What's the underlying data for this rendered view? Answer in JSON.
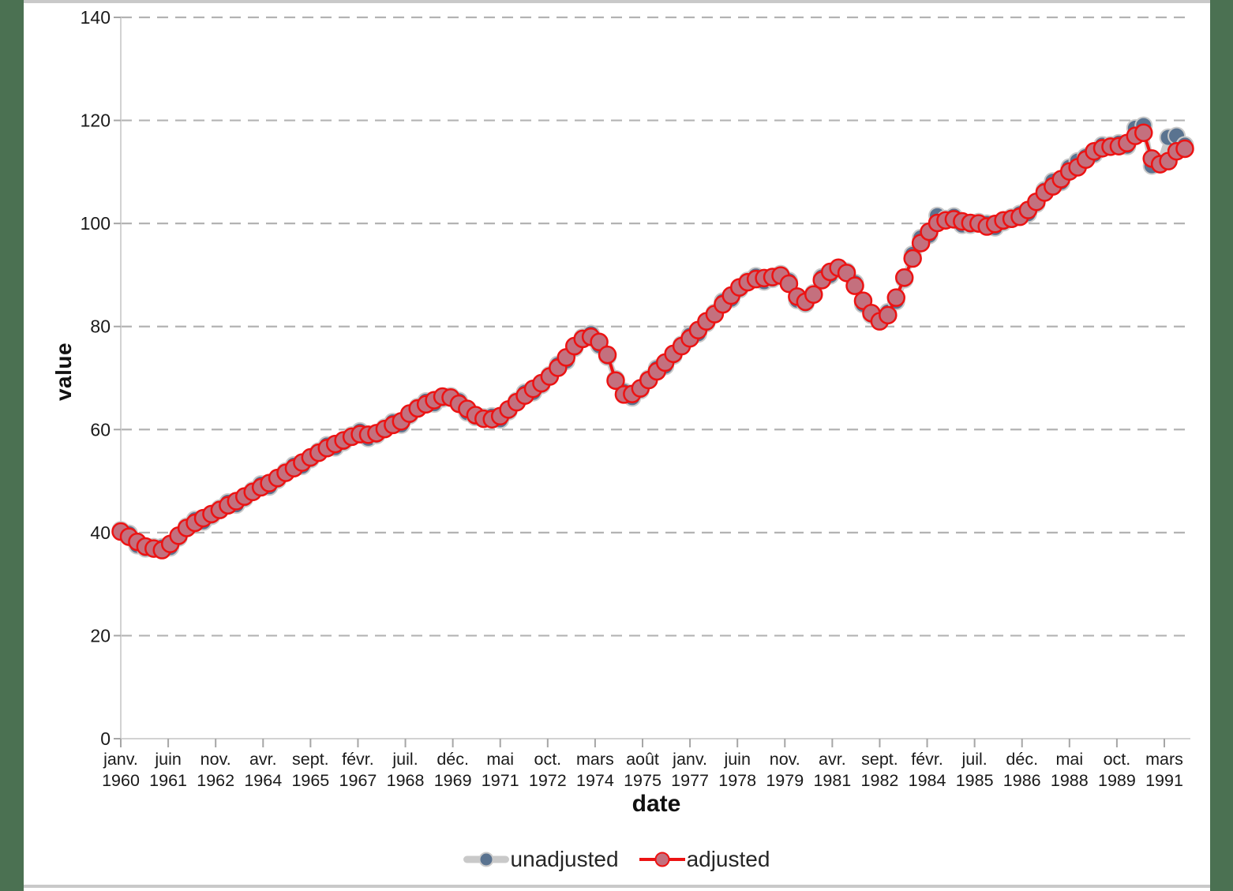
{
  "frame": {
    "side_border_color": "#4b7152",
    "frame_line_color": "#c9c9c9",
    "background": "#ffffff"
  },
  "axes": {
    "x_label": "date",
    "y_label": "value",
    "tick_label_color": "#1a1a1a",
    "axis_line_color": "#d2d2d2",
    "tick_mark_color": "#a6a6a6",
    "gridline_color": "#b3b3b3"
  },
  "legend": {
    "position": "bottom-center",
    "unadjusted_label": "unadjusted",
    "adjusted_label": "adjusted"
  },
  "chart_data": {
    "type": "line",
    "title": "",
    "xlabel": "date",
    "ylabel": "value",
    "ylim": [
      0,
      140
    ],
    "y_ticks": [
      0,
      20,
      40,
      60,
      80,
      100,
      120,
      140
    ],
    "grid": "horizontal dashed gridlines at every 20 units",
    "legend_position": "bottom",
    "x_description": "quarterly observations from 1960 Q1 to 1992 Q2 (130 points); axis ticks every 17 months with French month abbreviations",
    "x_tick_labels": [
      {
        "month": "janv.",
        "year": "1960"
      },
      {
        "month": "juin",
        "year": "1961"
      },
      {
        "month": "nov.",
        "year": "1962"
      },
      {
        "month": "avr.",
        "year": "1964"
      },
      {
        "month": "sept.",
        "year": "1965"
      },
      {
        "month": "févr.",
        "year": "1967"
      },
      {
        "month": "juil.",
        "year": "1968"
      },
      {
        "month": "déc.",
        "year": "1969"
      },
      {
        "month": "mai",
        "year": "1971"
      },
      {
        "month": "oct.",
        "year": "1972"
      },
      {
        "month": "mars",
        "year": "1974"
      },
      {
        "month": "août",
        "year": "1975"
      },
      {
        "month": "janv.",
        "year": "1977"
      },
      {
        "month": "juin",
        "year": "1978"
      },
      {
        "month": "nov.",
        "year": "1979"
      },
      {
        "month": "avr.",
        "year": "1981"
      },
      {
        "month": "sept.",
        "year": "1982"
      },
      {
        "month": "févr.",
        "year": "1984"
      },
      {
        "month": "juil.",
        "year": "1985"
      },
      {
        "month": "déc.",
        "year": "1986"
      },
      {
        "month": "mai",
        "year": "1988"
      },
      {
        "month": "oct.",
        "year": "1989"
      },
      {
        "month": "mars",
        "year": "1991"
      }
    ],
    "series": [
      {
        "name": "unadjusted",
        "marker_fill": "#5a7390",
        "marker_stroke": "#c9c9c9",
        "line_color": "#c9c9c9",
        "values": [
          40.5,
          39.8,
          37.5,
          36.9,
          37.2,
          37.2,
          37.1,
          39.0,
          41.2,
          42.5,
          42.1,
          43.2,
          44.7,
          45.9,
          45.4,
          46.6,
          48.2,
          49.4,
          48.9,
          50.2,
          51.9,
          53.1,
          52.9,
          54.2,
          55.8,
          57.0,
          56.5,
          57.5,
          58.9,
          59.7,
          58.3,
          58.9,
          60.4,
          61.5,
          60.9,
          62.7,
          64.4,
          65.5,
          65.0,
          66.0,
          66.5,
          65.6,
          63.3,
          62.4,
          62.4,
          62.6,
          61.9,
          63.5,
          65.6,
          67.2,
          67.2,
          68.6,
          70.6,
          72.6,
          73.3,
          75.8,
          77.9,
          78.6,
          76.3,
          74.1,
          69.8,
          67.4,
          66.2,
          67.6,
          69.9,
          71.9,
          72.3,
          74.3,
          76.5,
          78.3,
          78.6,
          80.6,
          82.7,
          84.9,
          85.3,
          87.2,
          88.9,
          89.8,
          88.7,
          89.2,
          90.2,
          88.9,
          85.1,
          84.4,
          86.5,
          89.6,
          89.9,
          91.0,
          90.7,
          88.5,
          84.3,
          82.2,
          81.3,
          82.8,
          84.9,
          89.1,
          94.0,
          97.2,
          97.7,
          101.5,
          100.9,
          101.4,
          99.7,
          99.7,
          100.3,
          100.0,
          99.2,
          100.2,
          101.2,
          101.9,
          101.9,
          103.8,
          106.5,
          108.2,
          108.0,
          110.9,
          112.1,
          113.0,
          113.4,
          115.2,
          115.2,
          115.6,
          115.0,
          118.5,
          119.0,
          111.2,
          111.9,
          116.7,
          117.0,
          115.2
        ]
      },
      {
        "name": "adjusted",
        "marker_fill": "#c4707e",
        "marker_stroke": "#ec1313",
        "line_color": "#ec1313",
        "values": [
          40.2,
          39.2,
          38.2,
          37.3,
          36.9,
          36.6,
          37.8,
          39.4,
          40.9,
          41.9,
          42.8,
          43.6,
          44.4,
          45.3,
          46.1,
          47.0,
          47.9,
          48.8,
          49.6,
          50.6,
          51.6,
          52.5,
          53.6,
          54.6,
          55.5,
          56.4,
          57.2,
          57.9,
          58.6,
          59.1,
          59.0,
          59.3,
          60.1,
          60.9,
          61.6,
          63.1,
          64.1,
          64.9,
          65.7,
          66.4,
          66.2,
          65.0,
          64.0,
          62.8,
          62.1,
          62.0,
          62.6,
          63.9,
          65.3,
          66.6,
          67.9,
          69.0,
          70.3,
          72.0,
          74.0,
          76.2,
          77.6,
          78.0,
          77.0,
          74.5,
          69.5,
          66.8,
          66.9,
          68.0,
          69.6,
          71.3,
          73.0,
          74.7,
          76.2,
          77.7,
          79.3,
          81.0,
          82.4,
          84.3,
          86.0,
          87.6,
          88.6,
          89.2,
          89.4,
          89.6,
          89.9,
          88.3,
          85.8,
          84.8,
          86.2,
          89.0,
          90.6,
          91.4,
          90.4,
          87.9,
          85.0,
          82.6,
          81.0,
          82.2,
          85.6,
          89.5,
          93.2,
          96.2,
          98.4,
          100.1,
          100.6,
          100.8,
          100.4,
          100.1,
          100.0,
          99.4,
          99.9,
          100.6,
          100.9,
          101.3,
          102.6,
          104.2,
          106.0,
          107.2,
          108.6,
          110.1,
          110.9,
          112.4,
          114.0,
          114.6,
          114.9,
          115.0,
          115.6,
          117.0,
          117.6,
          112.6,
          111.5,
          112.1,
          114.0,
          114.5
        ]
      }
    ]
  }
}
